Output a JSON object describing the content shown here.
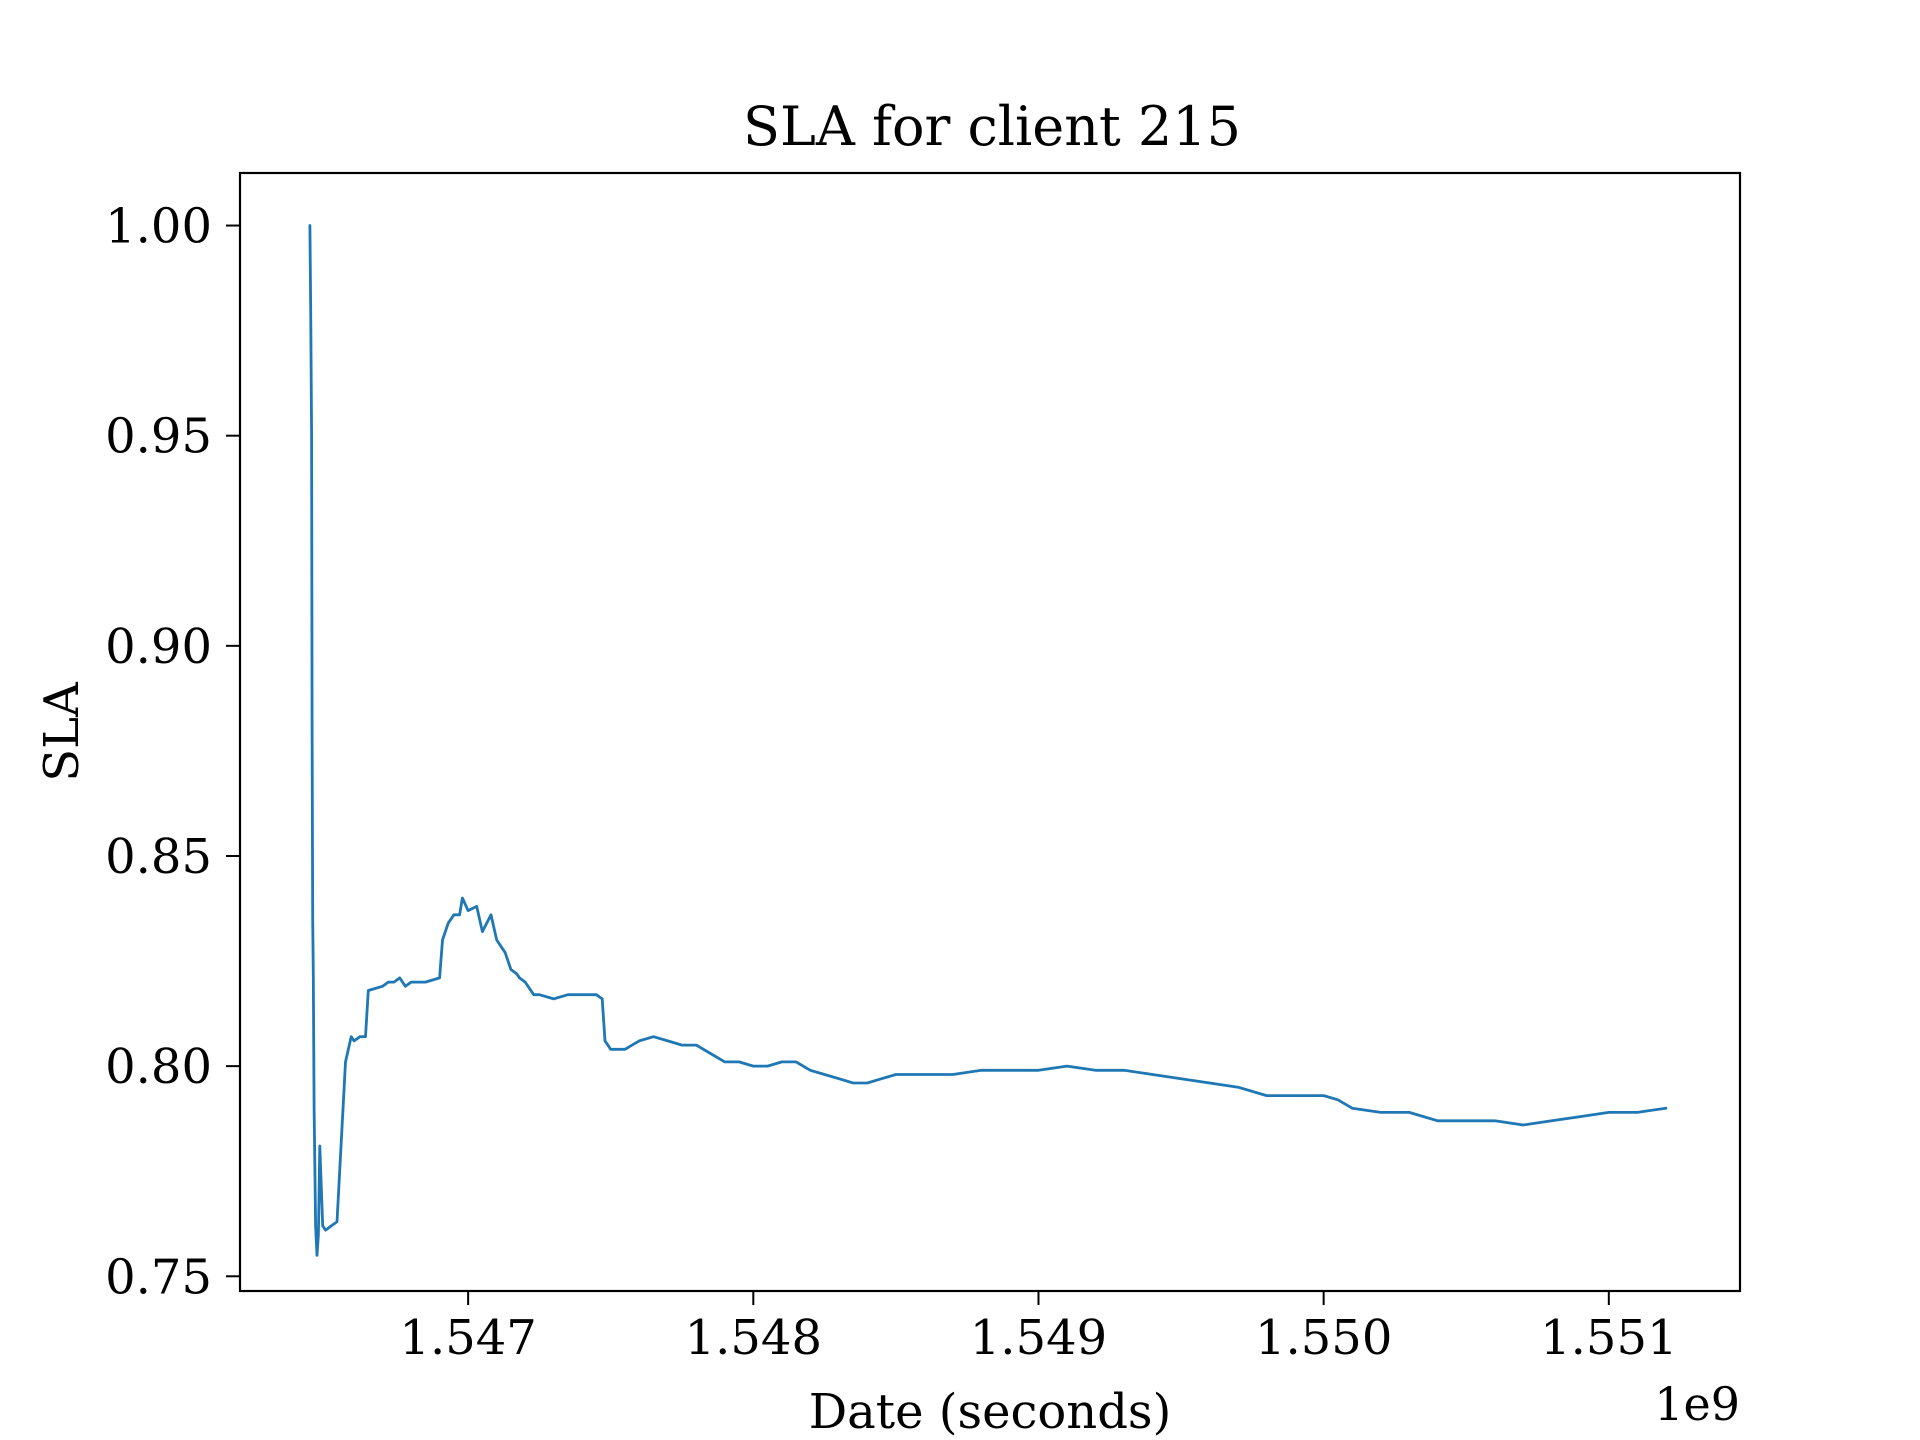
{
  "chart_data": {
    "type": "line",
    "title": "SLA for client 215",
    "xlabel": "Date (seconds)",
    "ylabel": "SLA",
    "x_offset_label": "1e9",
    "xlim": [
      1.5462,
      1.55146
    ],
    "ylim": [
      0.7465,
      1.0125
    ],
    "xticks": [
      1.547,
      1.548,
      1.549,
      1.55,
      1.551
    ],
    "xtick_labels": [
      "1.547",
      "1.548",
      "1.549",
      "1.550",
      "1.551"
    ],
    "yticks": [
      0.75,
      0.8,
      0.85,
      0.9,
      0.95,
      1.0
    ],
    "ytick_labels": [
      "0.75",
      "0.80",
      "0.85",
      "0.90",
      "0.95",
      "1.00"
    ],
    "grid": false,
    "series": [
      {
        "color": "#1f77b4",
        "x": [
          1.546445,
          1.546448,
          1.546451,
          1.546453,
          1.546455,
          1.546457,
          1.54646,
          1.546465,
          1.54647,
          1.546475,
          1.54648,
          1.546485,
          1.54649,
          1.5465,
          1.54652,
          1.54654,
          1.54657,
          1.54659,
          1.5466,
          1.54662,
          1.54664,
          1.54665,
          1.5467,
          1.54672,
          1.54674,
          1.54676,
          1.54678,
          1.5468,
          1.54685,
          1.5469,
          1.54691,
          1.54693,
          1.54695,
          1.54697,
          1.54698,
          1.547,
          1.54703,
          1.54705,
          1.54708,
          1.5471,
          1.54713,
          1.54715,
          1.54717,
          1.54718,
          1.5472,
          1.54723,
          1.54725,
          1.5473,
          1.54735,
          1.5474,
          1.54745,
          1.54747,
          1.54748,
          1.5475,
          1.54755,
          1.5476,
          1.54765,
          1.5477,
          1.54775,
          1.5478,
          1.54785,
          1.5479,
          1.54795,
          1.548,
          1.54805,
          1.5481,
          1.54815,
          1.5482,
          1.54825,
          1.5483,
          1.54835,
          1.5484,
          1.54845,
          1.5485,
          1.5486,
          1.5487,
          1.5488,
          1.5489,
          1.549,
          1.5491,
          1.5492,
          1.5493,
          1.5494,
          1.5495,
          1.5496,
          1.5497,
          1.5498,
          1.5499,
          1.55,
          1.55005,
          1.5501,
          1.5502,
          1.5503,
          1.5504,
          1.5505,
          1.5506,
          1.5507,
          1.5508,
          1.5509,
          1.551,
          1.5511,
          1.5512
        ],
        "values": [
          1.0,
          0.98,
          0.95,
          0.88,
          0.835,
          0.822,
          0.79,
          0.762,
          0.755,
          0.76,
          0.781,
          0.771,
          0.762,
          0.761,
          0.762,
          0.763,
          0.801,
          0.807,
          0.806,
          0.807,
          0.807,
          0.818,
          0.819,
          0.82,
          0.82,
          0.821,
          0.819,
          0.82,
          0.82,
          0.821,
          0.83,
          0.834,
          0.836,
          0.836,
          0.84,
          0.837,
          0.838,
          0.832,
          0.836,
          0.83,
          0.827,
          0.823,
          0.822,
          0.821,
          0.82,
          0.817,
          0.817,
          0.816,
          0.817,
          0.817,
          0.817,
          0.816,
          0.806,
          0.804,
          0.804,
          0.806,
          0.807,
          0.806,
          0.805,
          0.805,
          0.803,
          0.801,
          0.801,
          0.8,
          0.8,
          0.801,
          0.801,
          0.799,
          0.798,
          0.797,
          0.796,
          0.796,
          0.797,
          0.798,
          0.798,
          0.798,
          0.799,
          0.799,
          0.799,
          0.8,
          0.799,
          0.799,
          0.798,
          0.797,
          0.796,
          0.795,
          0.793,
          0.793,
          0.793,
          0.792,
          0.79,
          0.789,
          0.789,
          0.787,
          0.787,
          0.787,
          0.786,
          0.787,
          0.788,
          0.789,
          0.789,
          0.79
        ]
      }
    ]
  }
}
